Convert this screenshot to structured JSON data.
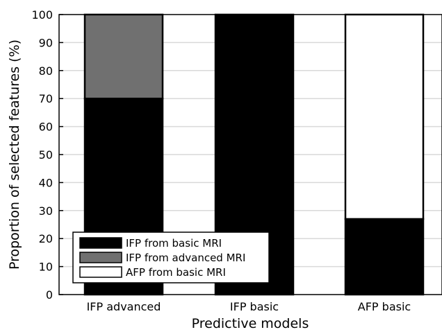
{
  "chart_data": {
    "type": "bar",
    "stacked": true,
    "categories": [
      "IFP advanced",
      "IFP basic",
      "AFP basic"
    ],
    "series": [
      {
        "name": "IFP from basic MRI",
        "values": [
          70,
          100,
          27
        ],
        "color": "#000000"
      },
      {
        "name": "IFP from advanced MRI",
        "values": [
          30,
          0,
          0
        ],
        "color": "#707070"
      },
      {
        "name": "AFP from basic MRI",
        "values": [
          0,
          0,
          73
        ],
        "color": "#ffffff"
      }
    ],
    "xlabel": "Predictive models",
    "ylabel": "Proportion of selected features (%)",
    "ylim": [
      0,
      100
    ],
    "yticks": [
      0,
      10,
      20,
      30,
      40,
      50,
      60,
      70,
      80,
      90,
      100
    ],
    "grid": "horizontal",
    "legend_position": "bottom-left"
  }
}
